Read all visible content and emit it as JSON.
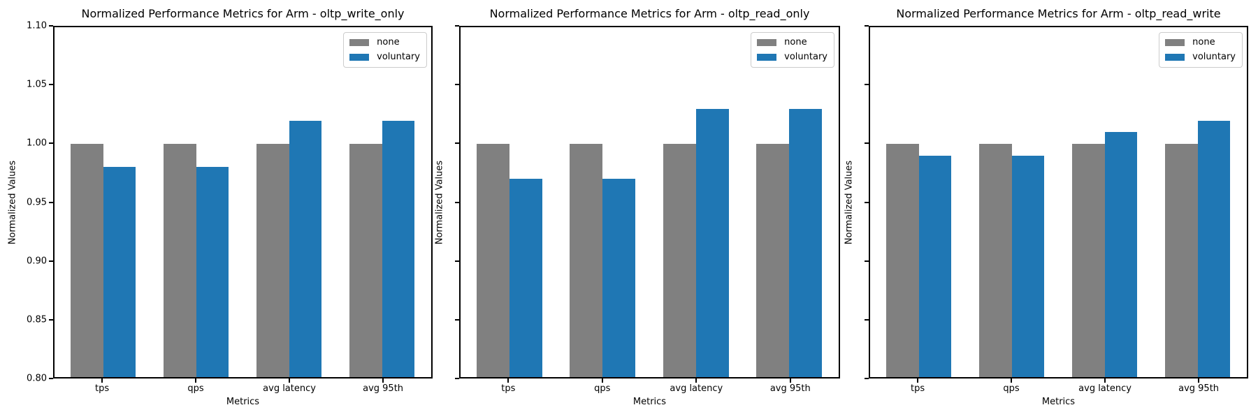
{
  "figure": {
    "background": "#ffffff",
    "text_color": "#000000",
    "spine_color": "#000000",
    "legend_border_color": "#cccccc",
    "series_colors": {
      "none": "#808080",
      "voluntary": "#1f77b4"
    }
  },
  "chart_data": [
    {
      "type": "bar",
      "title": "Normalized Performance Metrics for Arm - oltp_write_only",
      "xlabel": "Metrics",
      "ylabel": "Normalized Values",
      "categories": [
        "tps",
        "qps",
        "avg latency",
        "avg 95th"
      ],
      "series": [
        {
          "name": "none",
          "color": "#808080",
          "values": [
            1.0,
            1.0,
            1.0,
            1.0
          ]
        },
        {
          "name": "voluntary",
          "color": "#1f77b4",
          "values": [
            0.98,
            0.98,
            1.02,
            1.02
          ]
        }
      ],
      "ylim": [
        0.8,
        1.1
      ],
      "yticks": [
        0.8,
        0.85,
        0.9,
        0.95,
        1.0,
        1.05,
        1.1
      ],
      "ytick_labels": [
        "0.80",
        "0.85",
        "0.90",
        "0.95",
        "1.00",
        "1.05",
        "1.10"
      ],
      "ytick_labels_visible": true,
      "grid": false,
      "legend": {
        "position": "upper right",
        "entries": [
          "none",
          "voluntary"
        ]
      }
    },
    {
      "type": "bar",
      "title": "Normalized Performance Metrics for Arm - oltp_read_only",
      "xlabel": "Metrics",
      "ylabel": "Normalized Values",
      "categories": [
        "tps",
        "qps",
        "avg latency",
        "avg 95th"
      ],
      "series": [
        {
          "name": "none",
          "color": "#808080",
          "values": [
            1.0,
            1.0,
            1.0,
            1.0
          ]
        },
        {
          "name": "voluntary",
          "color": "#1f77b4",
          "values": [
            0.97,
            0.97,
            1.03,
            1.03
          ]
        }
      ],
      "ylim": [
        0.8,
        1.1
      ],
      "yticks": [
        0.8,
        0.85,
        0.9,
        0.95,
        1.0,
        1.05,
        1.1
      ],
      "ytick_labels": [
        "0.80",
        "0.85",
        "0.90",
        "0.95",
        "1.00",
        "1.05",
        "1.10"
      ],
      "ytick_labels_visible": false,
      "grid": false,
      "legend": {
        "position": "upper right",
        "entries": [
          "none",
          "voluntary"
        ]
      }
    },
    {
      "type": "bar",
      "title": "Normalized Performance Metrics for Arm - oltp_read_write",
      "xlabel": "Metrics",
      "ylabel": "Normalized Values",
      "categories": [
        "tps",
        "qps",
        "avg latency",
        "avg 95th"
      ],
      "series": [
        {
          "name": "none",
          "color": "#808080",
          "values": [
            1.0,
            1.0,
            1.0,
            1.0
          ]
        },
        {
          "name": "voluntary",
          "color": "#1f77b4",
          "values": [
            0.99,
            0.99,
            1.01,
            1.02
          ]
        }
      ],
      "ylim": [
        0.8,
        1.1
      ],
      "yticks": [
        0.8,
        0.85,
        0.9,
        0.95,
        1.0,
        1.05,
        1.1
      ],
      "ytick_labels": [
        "0.80",
        "0.85",
        "0.90",
        "0.95",
        "1.00",
        "1.05",
        "1.10"
      ],
      "ytick_labels_visible": false,
      "grid": false,
      "legend": {
        "position": "upper right",
        "entries": [
          "none",
          "voluntary"
        ]
      }
    }
  ]
}
